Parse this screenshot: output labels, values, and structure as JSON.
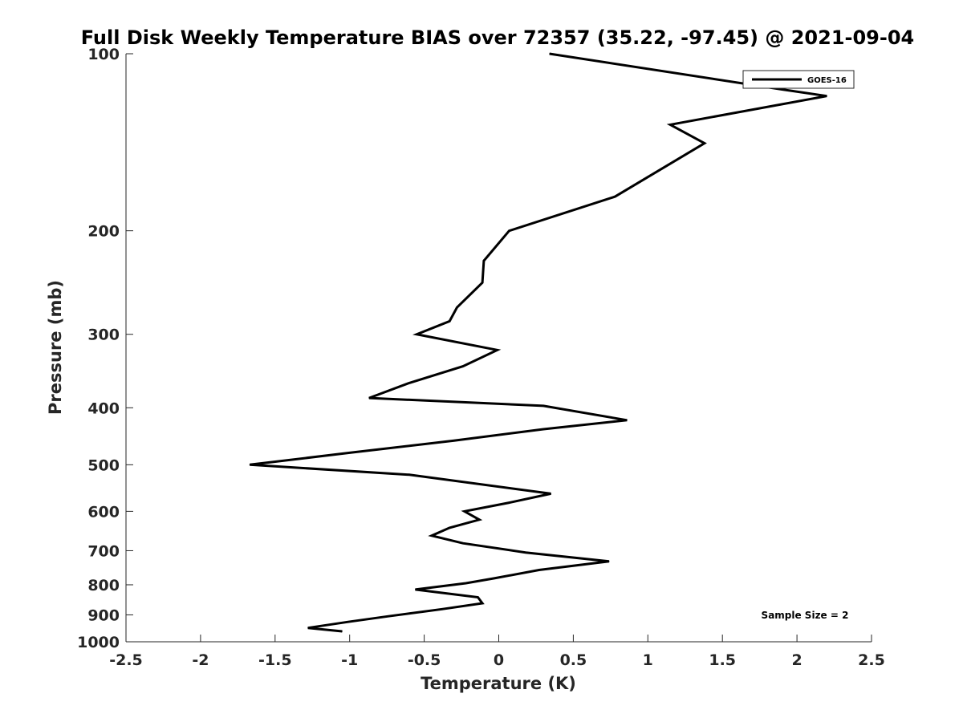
{
  "chart_data": {
    "type": "line",
    "title": "Full Disk Weekly Temperature BIAS over 72357 (35.22, -97.45) @ 2021-09-04",
    "xlabel": "Temperature (K)",
    "ylabel": "Pressure (mb)",
    "xlim": [
      -2.5,
      2.5
    ],
    "ylim": [
      100,
      1000
    ],
    "y_scale": "log",
    "y_reversed": true,
    "xticks": [
      "-2.5",
      "-2",
      "-1.5",
      "-1",
      "-0.5",
      "0",
      "0.5",
      "1",
      "1.5",
      "2",
      "2.5"
    ],
    "yticks": [
      "100",
      "200",
      "300",
      "400",
      "500",
      "600",
      "700",
      "800",
      "900",
      "1000"
    ],
    "grid": false,
    "legend_position": "top-right",
    "series": [
      {
        "name": "GOES-16",
        "color": "#000000",
        "x": [
          0.34,
          1.9,
          2.2,
          1.15,
          1.38,
          0.78,
          0.07,
          -0.1,
          -0.11,
          -0.28,
          -0.33,
          -0.55,
          -0.01,
          -0.24,
          -0.6,
          -0.87,
          0.3,
          0.86,
          0.3,
          -0.3,
          -1.0,
          -1.67,
          -0.6,
          0.35,
          0.07,
          -0.23,
          -0.13,
          -0.33,
          -0.45,
          -0.24,
          0.18,
          0.74,
          0.27,
          -0.03,
          -0.22,
          -0.56,
          -0.14,
          -0.11,
          -0.38,
          -0.74,
          -1.01,
          -1.28,
          -1.05
        ],
        "y": [
          100,
          115,
          118,
          132,
          142,
          175,
          200,
          225,
          245,
          270,
          285,
          300,
          319,
          340,
          363,
          385,
          397,
          420,
          435,
          455,
          477,
          500,
          520,
          560,
          580,
          600,
          620,
          640,
          660,
          680,
          705,
          730,
          755,
          780,
          795,
          815,
          840,
          860,
          880,
          905,
          925,
          947,
          960
        ]
      }
    ],
    "annotation": "Sample Size = 2"
  }
}
